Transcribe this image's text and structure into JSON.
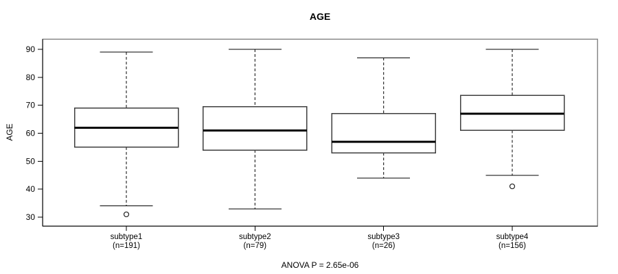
{
  "title": "AGE",
  "chart_data": {
    "type": "box",
    "title": "AGE",
    "xlabel": "",
    "ylabel": "AGE",
    "ylim": [
      27,
      93
    ],
    "yticks": [
      30,
      40,
      50,
      60,
      70,
      80,
      90
    ],
    "grid": false,
    "legend": "none",
    "annotation": "ANOVA P = 2.65e-06",
    "groups": [
      {
        "label": "subtype1",
        "n_label": "(n=191)",
        "n": 191,
        "whisker_low": 34,
        "q1": 55,
        "median": 62,
        "q3": 69,
        "whisker_high": 89,
        "outliers": [
          31
        ]
      },
      {
        "label": "subtype2",
        "n_label": "(n=79)",
        "n": 79,
        "whisker_low": 33,
        "q1": 54,
        "median": 61,
        "q3": 69.5,
        "whisker_high": 90,
        "outliers": []
      },
      {
        "label": "subtype3",
        "n_label": "(n=26)",
        "n": 26,
        "whisker_low": 44,
        "q1": 53,
        "median": 57,
        "q3": 67,
        "whisker_high": 87,
        "outliers": []
      },
      {
        "label": "subtype4",
        "n_label": "(n=156)",
        "n": 156,
        "whisker_low": 45,
        "q1": 61,
        "median": 67,
        "q3": 73.5,
        "whisker_high": 90,
        "outliers": [
          41
        ]
      }
    ],
    "colors": {
      "frame": "#8a8a8a",
      "axis": "#000000",
      "box_border": "#3d3d3d",
      "box_fill": "#ffffff",
      "median": "#000000",
      "whisker": "#000000",
      "outlier": "#222222",
      "background": "#ffffff"
    }
  }
}
